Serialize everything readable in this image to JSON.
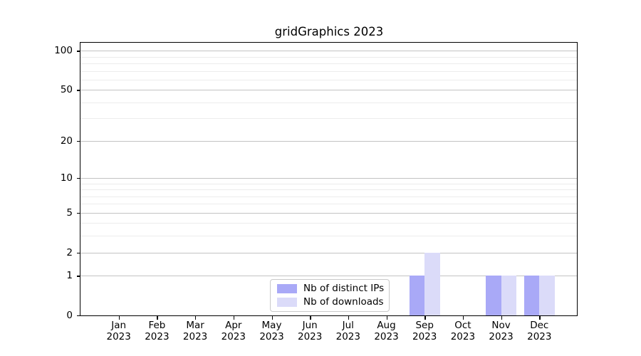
{
  "chart_data": {
    "type": "bar",
    "title": "gridGraphics 2023",
    "categories": [
      "Jan 2023",
      "Feb 2023",
      "Mar 2023",
      "Apr 2023",
      "May 2023",
      "Jun 2023",
      "Jul 2023",
      "Aug 2023",
      "Sep 2023",
      "Oct 2023",
      "Nov 2023",
      "Dec 2023"
    ],
    "series": [
      {
        "name": "Nb of distinct IPs",
        "color": "#a9a9f7",
        "values": [
          0,
          0,
          0,
          0,
          0,
          0,
          0,
          0,
          1,
          0,
          1,
          1
        ]
      },
      {
        "name": "Nb of downloads",
        "color": "#dbdbf9",
        "values": [
          0,
          0,
          0,
          0,
          0,
          0,
          0,
          0,
          2,
          0,
          1,
          1
        ]
      }
    ],
    "y_axis": {
      "scale": "log1p",
      "ticks": [
        0,
        1,
        2,
        5,
        10,
        20,
        50,
        100
      ],
      "minor_ticks": [
        3,
        4,
        6,
        7,
        8,
        9,
        30,
        40,
        60,
        70,
        80,
        90
      ],
      "top_value": 115
    },
    "x_axis": {
      "label_year_on_second_line": true
    },
    "legend": {
      "position": "lower center",
      "border_color": "#c9c9c9"
    },
    "grid": {
      "major_color": "#c3c3c3",
      "minor_color": "#ececec"
    },
    "ylim": [
      0,
      115
    ],
    "xlabel": "",
    "ylabel": ""
  }
}
